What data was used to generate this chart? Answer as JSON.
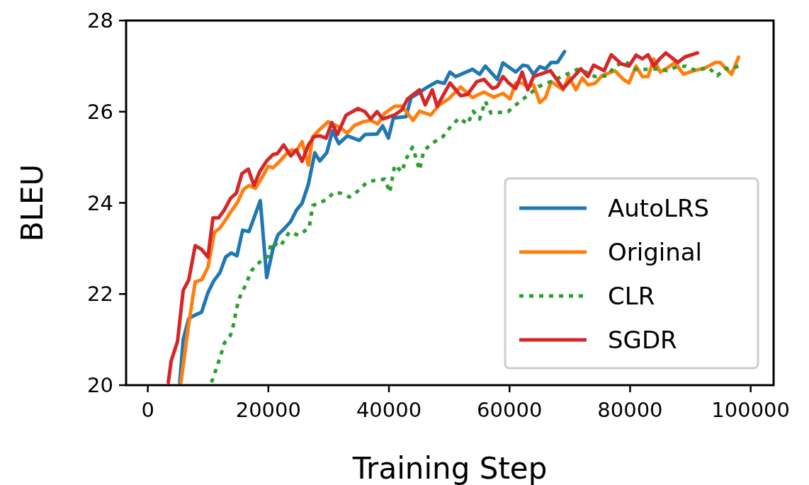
{
  "chart_data": {
    "type": "line",
    "xlabel": "Training Step",
    "ylabel": "BLEU",
    "xlim": [
      -3600,
      103800
    ],
    "xticks": [
      0,
      20000,
      40000,
      60000,
      80000,
      100000
    ],
    "ylim": [
      20,
      28
    ],
    "yticks": [
      20,
      22,
      24,
      26,
      28
    ],
    "grid": false,
    "legend": "bottom right",
    "marker": "none",
    "series": [
      {
        "name": "AutoLRS",
        "color": "#1f77b4",
        "line_style": "solid",
        "x": [
          5300,
          5870,
          6800,
          7860,
          8920,
          9980,
          10900,
          11970,
          12910,
          13850,
          14790,
          15730,
          16780,
          18660,
          19720,
          20770,
          21600,
          22540,
          23710,
          24650,
          25590,
          26640,
          27700,
          28520,
          29690,
          30630,
          31690,
          33100,
          35090,
          36030,
          38030,
          38970,
          39910,
          40730,
          42840,
          43660,
          44840,
          46010,
          48000,
          49180,
          50100,
          51060,
          53870,
          55050,
          55980,
          57980,
          58900,
          61030,
          62210,
          63030,
          63970,
          65020,
          65960,
          66900,
          67960,
          69130
        ],
        "values": [
          20.06,
          21.0,
          21.46,
          21.54,
          21.6,
          22.03,
          22.28,
          22.47,
          22.81,
          22.9,
          22.84,
          23.4,
          23.37,
          24.05,
          22.36,
          23.0,
          23.3,
          23.42,
          23.59,
          23.84,
          23.99,
          24.41,
          25.1,
          24.92,
          25.1,
          25.58,
          25.3,
          25.47,
          25.37,
          25.5,
          25.51,
          25.69,
          25.42,
          25.86,
          25.89,
          26.31,
          26.4,
          26.51,
          26.66,
          26.62,
          26.87,
          26.77,
          26.93,
          26.82,
          27.0,
          26.71,
          27.07,
          26.87,
          27.02,
          27.0,
          26.82,
          26.99,
          26.94,
          27.08,
          27.08,
          27.32
        ]
      },
      {
        "name": "Original",
        "color": "#ff7f0e",
        "line_style": "solid",
        "x": [
          5500,
          6700,
          7860,
          8920,
          9980,
          11030,
          11970,
          12910,
          13850,
          14910,
          15850,
          16780,
          17840,
          19010,
          19950,
          20770,
          21950,
          22890,
          23830,
          24650,
          25590,
          26640,
          27350,
          28520,
          29930,
          31920,
          33100,
          34270,
          35800,
          36970,
          38150,
          39320,
          40960,
          42140,
          44010,
          45070,
          46950,
          48360,
          49880,
          51880,
          53870,
          55750,
          57390,
          58920,
          60090,
          61030,
          62090,
          63030,
          63970,
          65020,
          65960,
          66900,
          68900,
          69840,
          71010,
          72070,
          73000,
          74180,
          75350,
          77460,
          78870,
          79810,
          80990,
          82040,
          82980,
          83920,
          84980,
          86270,
          87440,
          88850,
          90610,
          92610,
          94130,
          94950,
          96830,
          98000
        ],
        "values": [
          20.06,
          21.26,
          22.27,
          22.31,
          22.59,
          23.35,
          23.45,
          23.63,
          23.82,
          24.02,
          24.29,
          24.38,
          24.32,
          24.57,
          24.8,
          24.77,
          24.92,
          25.06,
          25.16,
          25.14,
          25.34,
          24.83,
          25.45,
          25.61,
          25.78,
          25.65,
          25.53,
          25.7,
          25.78,
          25.81,
          25.73,
          25.97,
          26.12,
          26.12,
          25.81,
          26.01,
          25.93,
          26.15,
          26.28,
          26.54,
          26.31,
          26.43,
          26.32,
          26.4,
          26.28,
          26.63,
          26.63,
          26.54,
          26.59,
          26.2,
          26.31,
          26.66,
          26.48,
          26.77,
          26.48,
          26.74,
          26.59,
          26.62,
          26.79,
          26.9,
          26.71,
          26.63,
          27.0,
          26.77,
          26.77,
          27.16,
          26.87,
          26.97,
          27.08,
          26.82,
          26.9,
          26.97,
          27.08,
          27.08,
          26.82,
          27.2
        ]
      },
      {
        "name": "CLR",
        "color": "#2ca02c",
        "line_style": "dotted",
        "x": [
          10560,
          11380,
          12090,
          12680,
          13730,
          14320,
          14670,
          15260,
          16080,
          17250,
          18780,
          19950,
          20540,
          21950,
          23470,
          24990,
          26760,
          27350,
          29690,
          30870,
          32040,
          33450,
          34860,
          36270,
          37440,
          39320,
          40140,
          40490,
          40960,
          42140,
          42840,
          43900,
          44480,
          45070,
          45770,
          47180,
          48940,
          50350,
          51640,
          53050,
          53990,
          55050,
          55980,
          56920,
          59740,
          61500,
          63260,
          64790,
          66310,
          71480,
          74180,
          76290,
          77460,
          79230,
          80870,
          82630,
          84740,
          86150,
          87440,
          89200,
          90960,
          92960,
          94480,
          95660,
          97300,
          98470
        ],
        "values": [
          20.06,
          20.37,
          20.65,
          20.92,
          21.1,
          21.38,
          21.66,
          21.93,
          22.16,
          22.52,
          22.73,
          22.83,
          23.14,
          23.04,
          23.36,
          23.29,
          23.45,
          23.94,
          24.07,
          24.23,
          24.21,
          24.13,
          24.26,
          24.44,
          24.49,
          24.52,
          24.23,
          24.49,
          24.83,
          24.68,
          24.96,
          25.22,
          24.99,
          24.72,
          25.14,
          25.31,
          25.45,
          25.69,
          25.86,
          25.73,
          26.01,
          25.84,
          26.23,
          25.97,
          26.0,
          26.2,
          26.38,
          26.55,
          26.63,
          26.94,
          26.77,
          26.79,
          27.0,
          27.1,
          26.93,
          26.93,
          26.94,
          26.9,
          26.97,
          27.0,
          26.9,
          26.97,
          26.79,
          26.94,
          26.97,
          27.02
        ]
      },
      {
        "name": "SGDR",
        "color": "#d62728",
        "line_style": "solid",
        "x": [
          3400,
          3870,
          4930,
          5870,
          6800,
          7860,
          8920,
          9980,
          10800,
          11740,
          12680,
          13730,
          14670,
          15610,
          16670,
          17610,
          18540,
          19720,
          20770,
          21480,
          22540,
          23710,
          24650,
          25590,
          26640,
          27580,
          28520,
          29580,
          30520,
          31460,
          32860,
          34860,
          36030,
          36970,
          38030,
          38970,
          40960,
          42140,
          43080,
          45070,
          46010,
          47180,
          48000,
          50120,
          51880,
          53050,
          54580,
          55750,
          57160,
          57980,
          58920,
          59860,
          61030,
          62090,
          63030,
          63970,
          66780,
          68900,
          71830,
          73000,
          73940,
          75700,
          76880,
          78520,
          79810,
          80990,
          82040,
          82980,
          83920,
          84980,
          85920,
          87910,
          89080,
          91200
        ],
        "values": [
          20.06,
          20.53,
          20.96,
          22.08,
          22.31,
          23.06,
          22.98,
          22.81,
          23.67,
          23.67,
          23.84,
          24.1,
          24.21,
          24.64,
          24.74,
          24.38,
          24.68,
          24.92,
          25.06,
          25.08,
          25.27,
          25.03,
          25.16,
          24.91,
          25.27,
          25.45,
          25.47,
          25.42,
          25.76,
          25.5,
          25.92,
          26.07,
          26.0,
          25.84,
          26.0,
          25.84,
          25.93,
          26.04,
          26.28,
          26.48,
          26.15,
          26.48,
          26.12,
          26.63,
          26.35,
          26.38,
          26.66,
          26.71,
          26.51,
          26.55,
          26.77,
          26.63,
          26.51,
          26.87,
          26.48,
          26.77,
          26.9,
          26.51,
          26.94,
          26.77,
          27.02,
          26.9,
          27.25,
          27.05,
          27.0,
          27.24,
          27.16,
          27.25,
          27.0,
          27.17,
          27.29,
          27.08,
          27.2,
          27.29
        ]
      }
    ]
  }
}
